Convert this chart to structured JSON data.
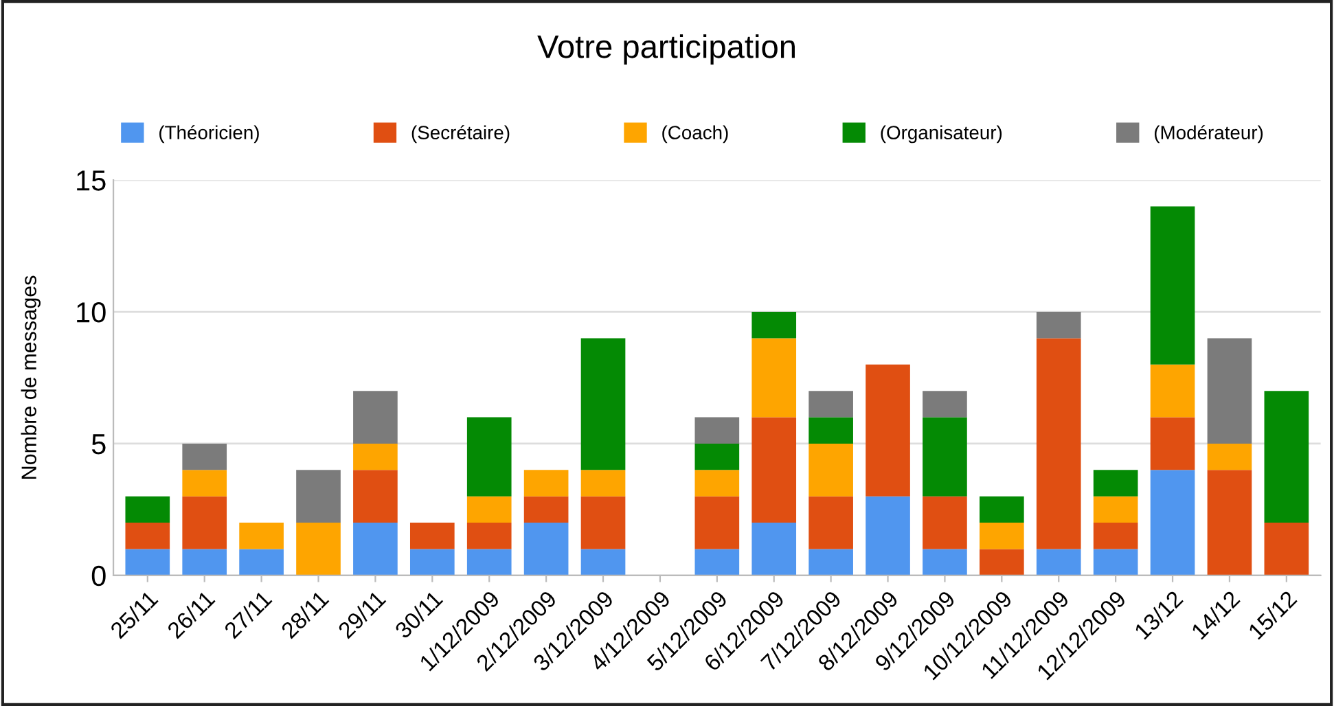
{
  "chart_data": {
    "type": "bar",
    "title": "Votre participation",
    "ylabel": "Nombre de messages",
    "stacked": true,
    "legend": "top",
    "grid": "y",
    "categories": [
      "25/11",
      "26/11",
      "27/11",
      "28/11",
      "29/11",
      "30/11",
      "1/12/2009",
      "2/12/2009",
      "3/12/2009",
      "4/12/2009",
      "5/12/2009",
      "6/12/2009",
      "7/12/2009",
      "8/12/2009",
      "9/12/2009",
      "10/12/2009",
      "11/12/2009",
      "12/12/2009",
      "13/12",
      "14/12",
      "15/12"
    ],
    "ylim": [
      0,
      15
    ],
    "yticks": [
      0,
      5,
      10,
      15
    ],
    "series": [
      {
        "name": "(Théoricien)",
        "color": "#5096ef",
        "values": [
          1,
          1,
          1,
          0,
          2,
          1,
          1,
          2,
          1,
          0,
          1,
          2,
          1,
          3,
          1,
          0,
          1,
          1,
          4,
          0,
          0
        ]
      },
      {
        "name": "(Secrétaire)",
        "color": "#e04f12",
        "values": [
          1,
          2,
          0,
          0,
          2,
          1,
          1,
          1,
          2,
          0,
          2,
          4,
          2,
          5,
          2,
          1,
          8,
          1,
          2,
          4,
          2
        ]
      },
      {
        "name": "(Coach)",
        "color": "#fea500",
        "values": [
          0,
          1,
          1,
          2,
          1,
          0,
          1,
          1,
          1,
          0,
          1,
          3,
          2,
          0,
          0,
          1,
          0,
          1,
          2,
          1,
          0
        ]
      },
      {
        "name": "(Organisateur)",
        "color": "#048a04",
        "values": [
          1,
          0,
          0,
          0,
          0,
          0,
          3,
          0,
          5,
          0,
          1,
          1,
          1,
          0,
          3,
          1,
          0,
          1,
          6,
          0,
          5
        ]
      },
      {
        "name": "(Modérateur)",
        "color": "#7b7b7b",
        "values": [
          0,
          1,
          0,
          2,
          2,
          0,
          0,
          0,
          0,
          0,
          1,
          0,
          1,
          0,
          1,
          0,
          1,
          0,
          0,
          4,
          0
        ]
      }
    ]
  }
}
